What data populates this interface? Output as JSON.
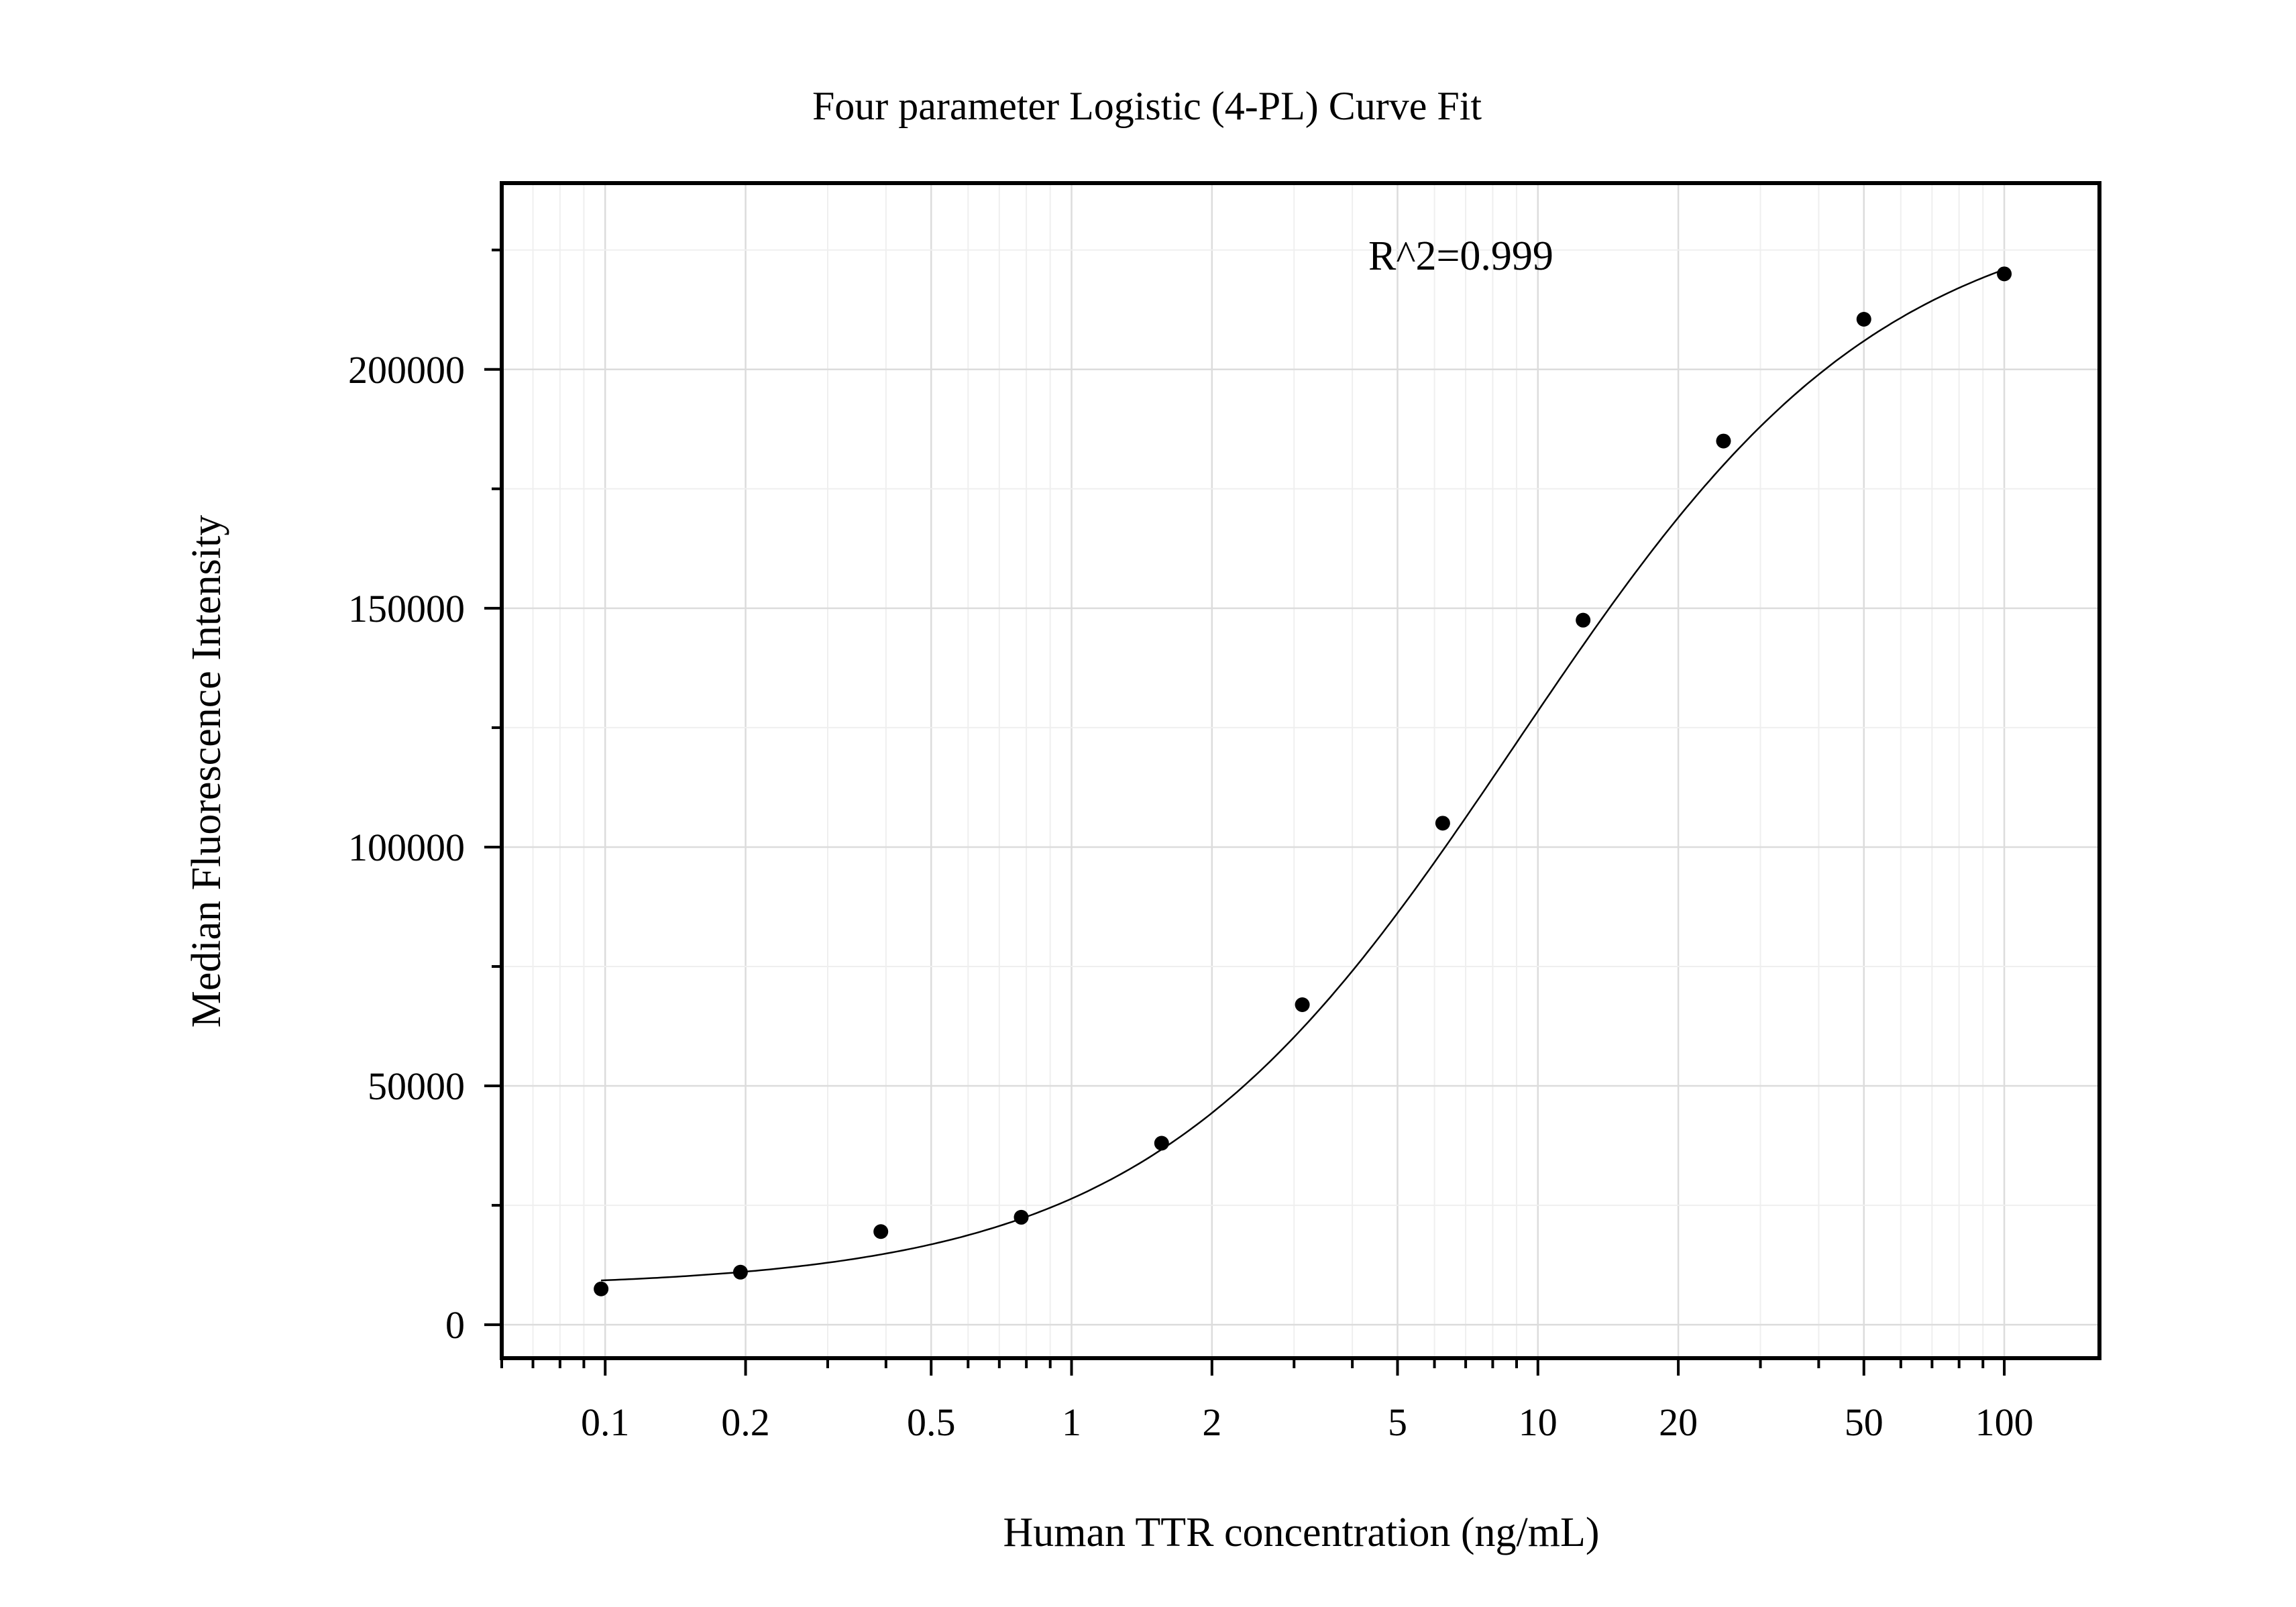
{
  "chart_data": {
    "type": "scatter",
    "title": "Four parameter Logistic (4-PL) Curve Fit",
    "xlabel": "Human TTR concentration (ng/mL)",
    "ylabel": "Median Fluorescence Intensity",
    "annotation": "R^2=0.999",
    "x_scale": "log",
    "xlim": [
      0.06,
      160
    ],
    "ylim": [
      -7000,
      239000
    ],
    "grid": true,
    "legend": "none",
    "x_ticks": [
      0.1,
      0.2,
      0.5,
      1,
      2,
      5,
      10,
      20,
      50,
      100
    ],
    "x_tick_labels": [
      "0.1",
      "0.2",
      "0.5",
      "1",
      "2",
      "5",
      "10",
      "20",
      "50",
      "100"
    ],
    "y_ticks": [
      0,
      50000,
      100000,
      150000,
      200000
    ],
    "y_tick_labels": [
      "0",
      "50000",
      "100000",
      "150000",
      "200000"
    ],
    "series": [
      {
        "points": [
          {
            "x": 0.098,
            "y": 7500
          },
          {
            "x": 0.195,
            "y": 11000
          },
          {
            "x": 0.39,
            "y": 19500
          },
          {
            "x": 0.78,
            "y": 22500
          },
          {
            "x": 1.56,
            "y": 38000
          },
          {
            "x": 3.125,
            "y": 67000
          },
          {
            "x": 6.25,
            "y": 105000
          },
          {
            "x": 12.5,
            "y": 147500
          },
          {
            "x": 25,
            "y": 185000
          },
          {
            "x": 50,
            "y": 210500
          },
          {
            "x": 100,
            "y": 220000
          }
        ]
      }
    ],
    "fit_curve": {
      "model": "4PL",
      "bottom": 7700,
      "top": 236000,
      "ec50": 9.0,
      "hill": 1.1,
      "x_range": [
        0.098,
        100
      ]
    },
    "colors": {
      "points": "#000000",
      "curve": "#000000",
      "frame": "#000000",
      "major_grid": "#dcdcdc",
      "minor_grid": "#efefef"
    }
  }
}
